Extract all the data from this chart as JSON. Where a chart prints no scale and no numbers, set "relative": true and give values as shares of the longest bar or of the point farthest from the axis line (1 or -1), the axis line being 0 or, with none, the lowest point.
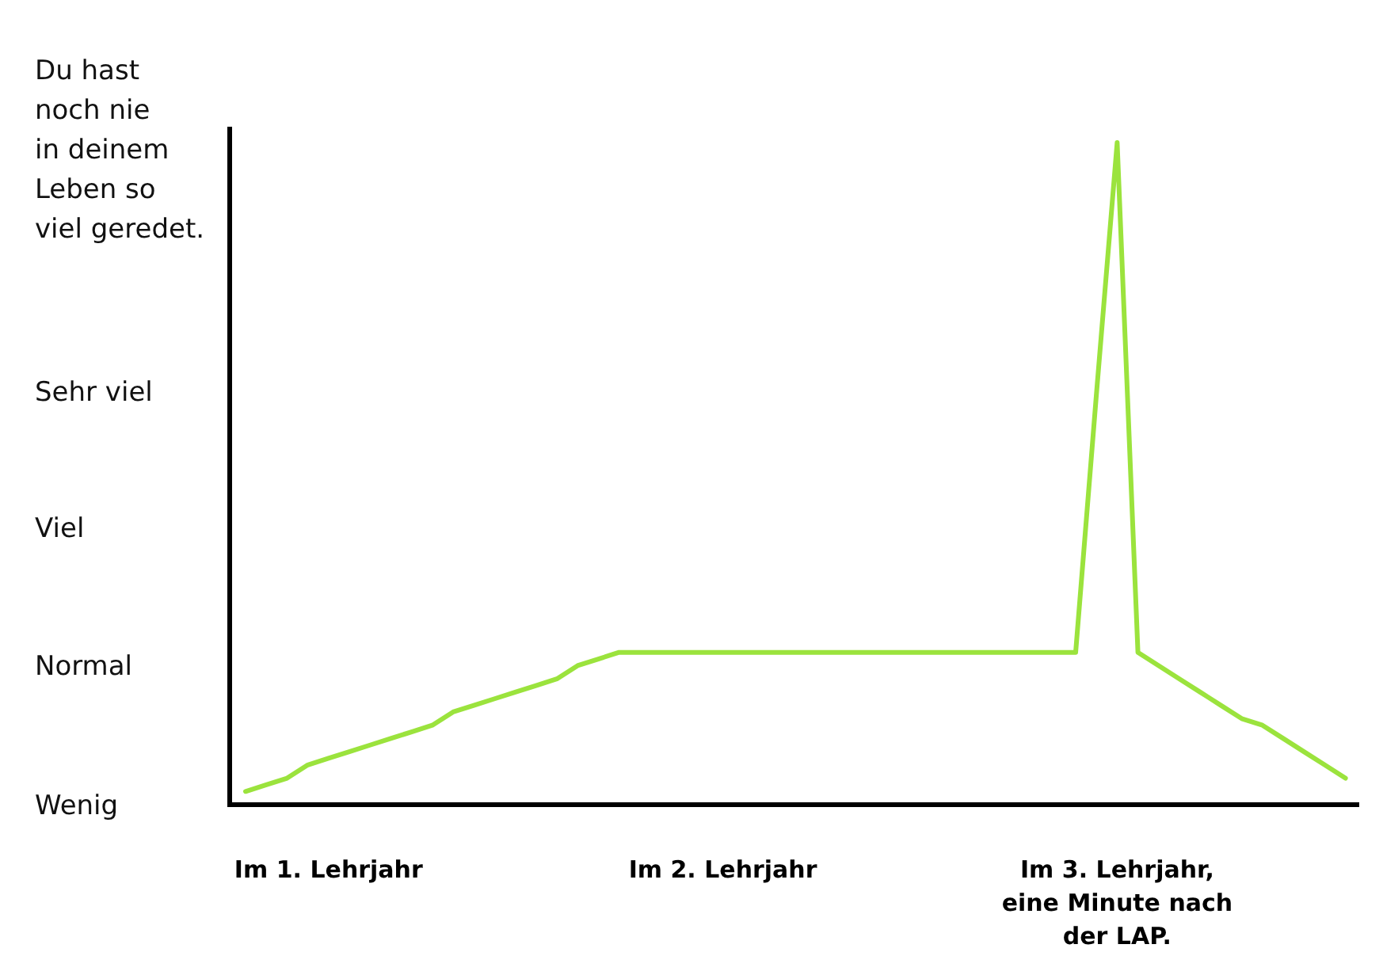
{
  "chart_data": {
    "type": "line",
    "relative": true,
    "categories": [
      null,
      null,
      null,
      null,
      "Im 1. Lehrjahr",
      null,
      null,
      null,
      null,
      null,
      null,
      null,
      null,
      null,
      null,
      null,
      null,
      null,
      null,
      null,
      null,
      null,
      null,
      "Im 2. Lehrjahr",
      null,
      null,
      null,
      null,
      null,
      null,
      null,
      null,
      null,
      null,
      null,
      null,
      null,
      null,
      null,
      null,
      null,
      null,
      "Im 3. Lehrjahr,\neine Minute nach\nder LAP.",
      null,
      null,
      null,
      null,
      null,
      null,
      null,
      null,
      null,
      null,
      null
    ],
    "series": [
      {
        "color": "#9be33d",
        "values": [
          0.02,
          0.03,
          0.04,
          0.06,
          0.07,
          0.08,
          0.09,
          0.1,
          0.11,
          0.12,
          0.14,
          0.15,
          0.16,
          0.17,
          0.18,
          0.19,
          0.21,
          0.22,
          0.23,
          0.23,
          0.23,
          0.23,
          0.23,
          0.23,
          0.23,
          0.23,
          0.23,
          0.23,
          0.23,
          0.23,
          0.23,
          0.23,
          0.23,
          0.23,
          0.23,
          0.23,
          0.23,
          0.23,
          0.23,
          0.23,
          0.23,
          0.62,
          1,
          0.23,
          0.21,
          0.19,
          0.17,
          0.15,
          0.13,
          0.12,
          0.1,
          0.08,
          0.06,
          0.04
        ]
      }
    ],
    "annotations": [
      "Wenig",
      "Normal",
      "Viel",
      "Sehr viel",
      "Du hast\nnoch nie\nin deinem\nLeben so\nviel geredet."
    ],
    "marker": "none",
    "line_style": "solid"
  }
}
